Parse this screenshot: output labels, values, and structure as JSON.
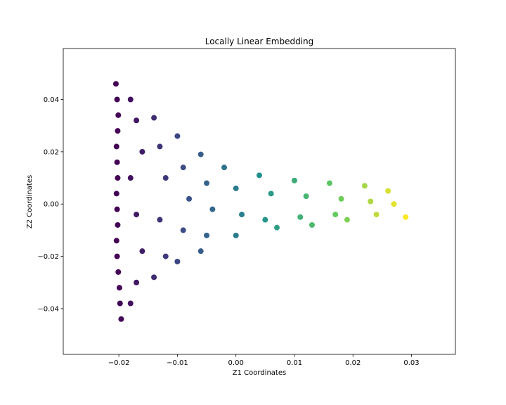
{
  "chart_data": {
    "type": "scatter",
    "title": "Locally Linear Embedding",
    "xlabel": "Z1 Coordinates",
    "ylabel": "Z2 Coordinates",
    "xlim": [
      -0.0295,
      0.0375
    ],
    "ylim": [
      -0.0575,
      0.0595
    ],
    "xticks": [
      -0.02,
      -0.01,
      0.0,
      0.01,
      0.02,
      0.03
    ],
    "xtick_labels": [
      "−0.02",
      "−0.01",
      "0.00",
      "0.01",
      "0.02",
      "0.03"
    ],
    "yticks": [
      -0.04,
      -0.02,
      0.0,
      0.02,
      0.04
    ],
    "ytick_labels": [
      "−0.04",
      "−0.02",
      "0.00",
      "0.02",
      "0.04"
    ],
    "grid": false,
    "legend": null,
    "colormap": "viridis",
    "color_encodes": "position along Z1 (purple at left, yellow at right)",
    "colormap_stops": [
      "#440154",
      "#3b528b",
      "#21918c",
      "#5ec962",
      "#fde725"
    ],
    "series": [
      {
        "points": [
          [
            -0.0205,
            0.046
          ],
          [
            -0.0203,
            0.04
          ],
          [
            -0.0201,
            0.034
          ],
          [
            -0.0202,
            0.028
          ],
          [
            -0.0204,
            0.022
          ],
          [
            -0.0203,
            0.016
          ],
          [
            -0.0202,
            0.01
          ],
          [
            -0.0204,
            0.004
          ],
          [
            -0.0203,
            -0.002
          ],
          [
            -0.0202,
            -0.008
          ],
          [
            -0.0204,
            -0.014
          ],
          [
            -0.0203,
            -0.02
          ],
          [
            -0.0201,
            -0.026
          ],
          [
            -0.0199,
            -0.032
          ],
          [
            -0.0198,
            -0.038
          ],
          [
            -0.0196,
            -0.044
          ],
          [
            -0.018,
            0.04
          ],
          [
            -0.017,
            0.032
          ],
          [
            -0.016,
            0.02
          ],
          [
            -0.018,
            0.01
          ],
          [
            -0.017,
            -0.004
          ],
          [
            -0.016,
            -0.018
          ],
          [
            -0.017,
            -0.03
          ],
          [
            -0.018,
            -0.038
          ],
          [
            -0.014,
            0.033
          ],
          [
            -0.013,
            0.022
          ],
          [
            -0.012,
            0.01
          ],
          [
            -0.013,
            -0.006
          ],
          [
            -0.012,
            -0.02
          ],
          [
            -0.014,
            -0.028
          ],
          [
            -0.01,
            0.026
          ],
          [
            -0.009,
            0.014
          ],
          [
            -0.008,
            0.002
          ],
          [
            -0.009,
            -0.01
          ],
          [
            -0.01,
            -0.022
          ],
          [
            -0.006,
            0.019
          ],
          [
            -0.005,
            0.008
          ],
          [
            -0.004,
            -0.002
          ],
          [
            -0.005,
            -0.012
          ],
          [
            -0.006,
            -0.018
          ],
          [
            -0.002,
            0.014
          ],
          [
            0.0,
            0.006
          ],
          [
            0.001,
            -0.004
          ],
          [
            0.0,
            -0.012
          ],
          [
            0.004,
            0.011
          ],
          [
            0.006,
            0.004
          ],
          [
            0.005,
            -0.006
          ],
          [
            0.007,
            -0.009
          ],
          [
            0.01,
            0.009
          ],
          [
            0.012,
            0.003
          ],
          [
            0.011,
            -0.005
          ],
          [
            0.013,
            -0.008
          ],
          [
            0.016,
            0.008
          ],
          [
            0.018,
            0.002
          ],
          [
            0.017,
            -0.004
          ],
          [
            0.019,
            -0.006
          ],
          [
            0.022,
            0.007
          ],
          [
            0.023,
            0.001
          ],
          [
            0.024,
            -0.004
          ],
          [
            0.026,
            0.005
          ],
          [
            0.027,
            0.0
          ],
          [
            0.029,
            -0.005
          ]
        ]
      }
    ]
  }
}
